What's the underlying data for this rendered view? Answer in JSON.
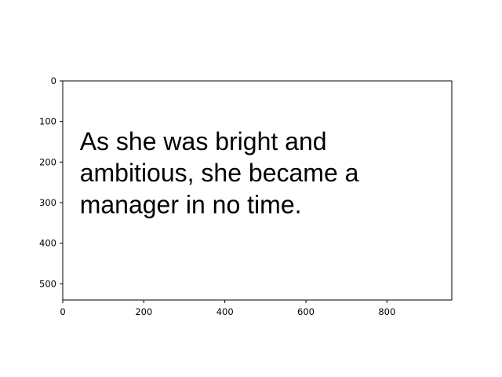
{
  "chart_data": {
    "type": "image",
    "xlim": [
      0,
      960
    ],
    "ylim": [
      540,
      0
    ],
    "y_inverted": true,
    "x_ticks": [
      0,
      200,
      400,
      600,
      800
    ],
    "y_ticks": [
      0,
      100,
      200,
      300,
      400,
      500
    ],
    "grid": false,
    "xlabel": "",
    "ylabel": "",
    "title": "",
    "image_text_lines": [
      "As she was bright and",
      "ambitious, she became a",
      "manager in no time."
    ]
  }
}
